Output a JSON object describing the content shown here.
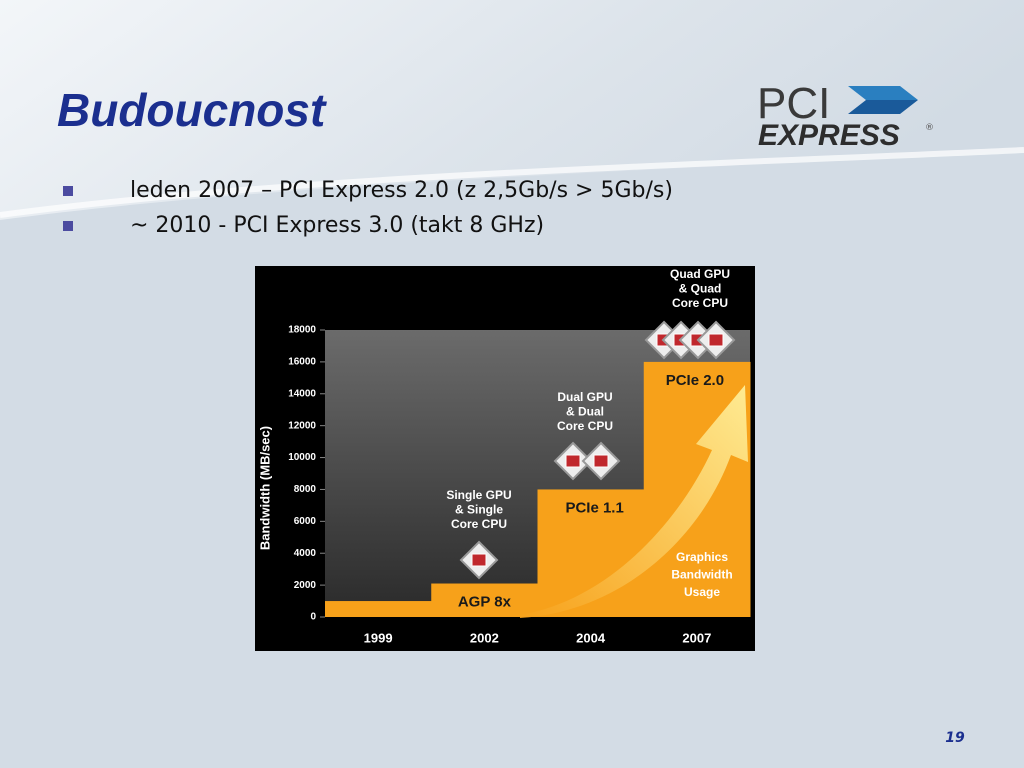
{
  "title": "Budoucnost",
  "logo": {
    "top": "PCI",
    "bottom": "EXPRESS",
    "mark": "®"
  },
  "bullets": [
    "leden 2007 – PCI Express 2.0 (z 2,5Gb/s > 5Gb/s)",
    "~ 2010 - PCI Express 3.0 (takt 8 GHz)"
  ],
  "page_number": "19",
  "chart_data": {
    "type": "step-area",
    "y_label": "Bandwidth (MB/sec)",
    "categories": [
      "1999",
      "2002",
      "2004",
      "2007"
    ],
    "values": [
      1000,
      2100,
      8000,
      16000
    ],
    "bar_labels": [
      null,
      "AGP 8x",
      "PCIe 1.1",
      "PCIe 2.0"
    ],
    "color": "#f7a11a",
    "ylim": [
      0,
      18000
    ],
    "yticks": [
      0,
      2000,
      4000,
      6000,
      8000,
      10000,
      12000,
      14000,
      16000,
      18000
    ],
    "annotations": [
      [
        "Single GPU",
        "& Single",
        "Core CPU"
      ],
      [
        "Dual GPU",
        "& Dual",
        "Core CPU"
      ],
      [
        "Quad GPU",
        "& Quad",
        "Core CPU"
      ],
      [
        "Graphics",
        "Bandwidth",
        "Usage"
      ]
    ]
  }
}
